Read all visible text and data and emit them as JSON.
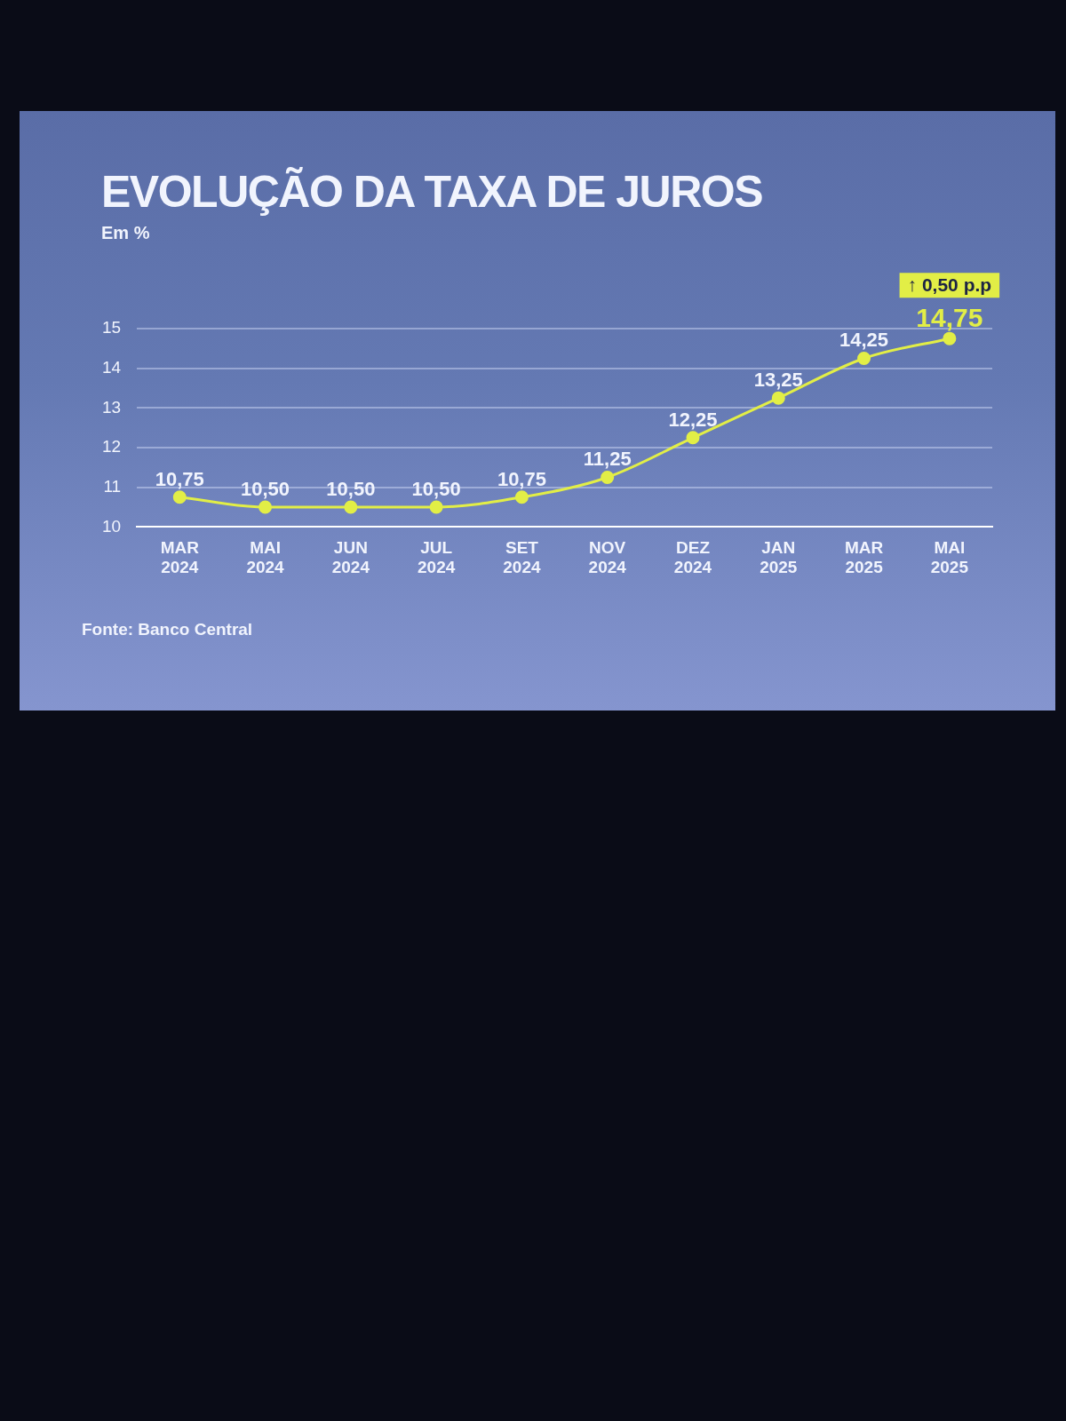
{
  "chart_data": {
    "type": "line",
    "title": "EVOLUÇÃO DA TAXA DE JUROS",
    "subtitle": "Em %",
    "categories": [
      "MAR 2024",
      "MAI 2024",
      "JUN 2024",
      "JUL 2024",
      "SET 2024",
      "NOV 2024",
      "DEZ 2024",
      "JAN 2025",
      "MAR 2025",
      "MAI 2025"
    ],
    "values": [
      10.75,
      10.5,
      10.5,
      10.5,
      10.75,
      11.25,
      12.25,
      13.25,
      14.25,
      14.75
    ],
    "value_labels": [
      "10,75",
      "10,50",
      "10,50",
      "10,50",
      "10,75",
      "11,25",
      "12,25",
      "13,25",
      "14,25",
      "14,75"
    ],
    "color": "#e2ee46",
    "ylim": [
      10,
      15
    ],
    "yticks": [
      10,
      11,
      12,
      13,
      14,
      15
    ],
    "grid": "y",
    "marker": "circle",
    "line_style": "solid",
    "annotations": [
      {
        "text": "↑ 0,50 p.p",
        "x": "MAI 2025",
        "y": 14.75
      },
      "Fonte: Banco Central"
    ]
  }
}
